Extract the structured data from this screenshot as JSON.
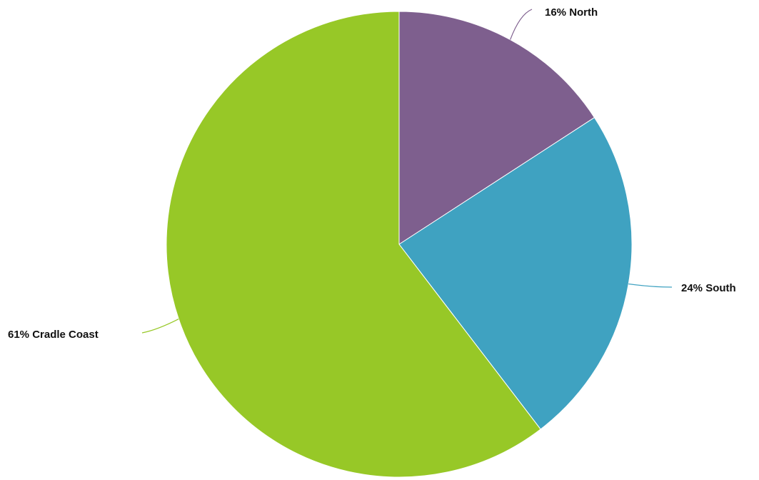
{
  "chart_data": {
    "type": "pie",
    "title": "",
    "start_angle": "12 o'clock",
    "direction": "clockwise",
    "legend": "none",
    "slices": [
      {
        "name": "North",
        "value": 16,
        "label": "16% North",
        "color": "#7E5F8E"
      },
      {
        "name": "South",
        "value": 24,
        "label": "24% South",
        "color": "#3FA2C1"
      },
      {
        "name": "Cradle Coast",
        "value": 61,
        "label": "61% Cradle Coast",
        "color": "#97C827"
      }
    ]
  }
}
